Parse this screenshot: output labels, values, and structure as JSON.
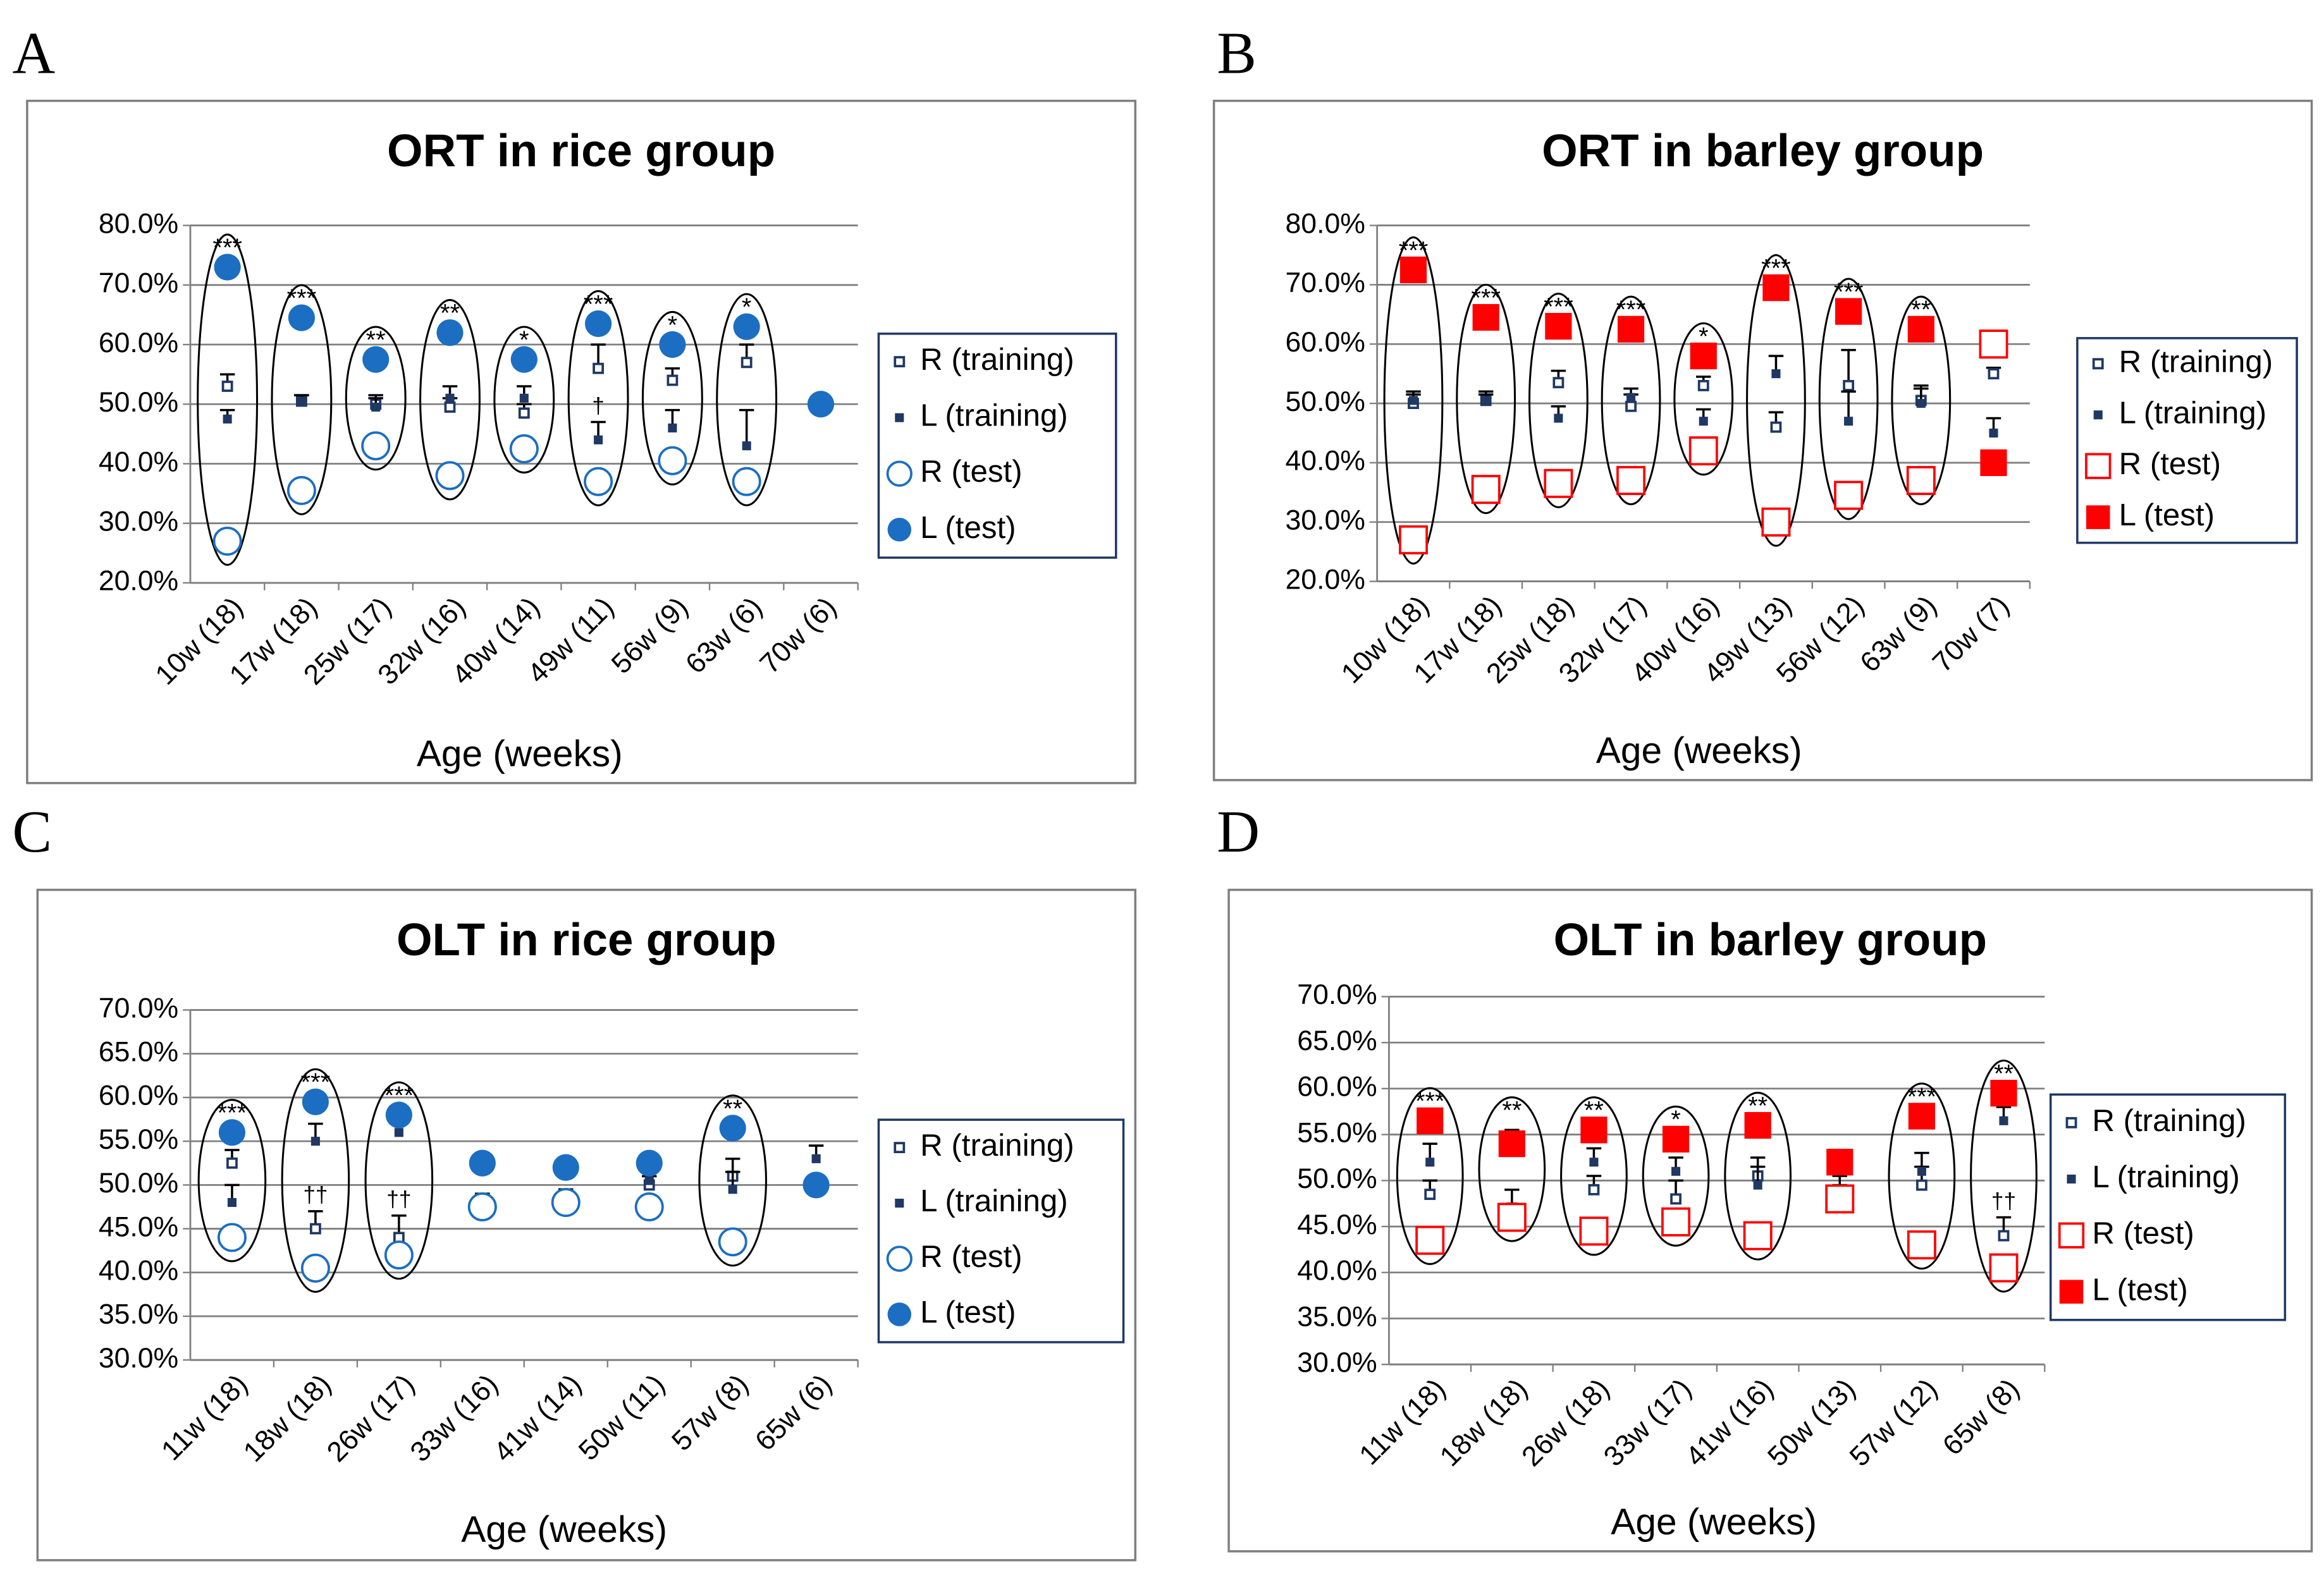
{
  "chart_data": [
    {
      "type": "dot",
      "panel": "A",
      "title": "ORT in rice group",
      "x_label": "Age (weeks)",
      "test_marker": "circle",
      "grid": true,
      "categories": [
        "10w (18)",
        "17w (18)",
        "25w (17)",
        "32w (16)",
        "40w (14)",
        "49w (11)",
        "56w (9)",
        "63w (6)",
        "70w (6)"
      ],
      "ylim": [
        20,
        80
      ],
      "yticks": [
        {
          "value": 20,
          "label": "20.0%"
        },
        {
          "value": 30,
          "label": "30.0%"
        },
        {
          "value": 40,
          "label": "40.0%"
        },
        {
          "value": 50,
          "label": "50.0%"
        },
        {
          "value": 60,
          "label": "60.0%"
        },
        {
          "value": 70,
          "label": "70.0%"
        },
        {
          "value": 80,
          "label": "80.0%"
        }
      ],
      "series": [
        {
          "name": "R (training)",
          "color": "#1f3864",
          "values": [
            53,
            50.5,
            50,
            49.5,
            48.5,
            56,
            54,
            57,
            null
          ],
          "errors": [
            2,
            1,
            1.5,
            1.5,
            1.5,
            4,
            2,
            3,
            null
          ]
        },
        {
          "name": "L (training)",
          "color": "#1f3864",
          "values": [
            47.5,
            50.5,
            49.5,
            51,
            51,
            44,
            46,
            43,
            null
          ],
          "errors": [
            1.5,
            1,
            1.5,
            2,
            2,
            3,
            3,
            6,
            null
          ]
        },
        {
          "name": "R (test)",
          "color": "#1b6ec2",
          "values": [
            27,
            35.5,
            43,
            38,
            42.5,
            37,
            40.5,
            37,
            null
          ]
        },
        {
          "name": "L  (test)",
          "color": "#1b6ec2",
          "values": [
            73,
            64.5,
            57.5,
            62,
            57.5,
            63.5,
            60,
            63,
            50
          ]
        }
      ],
      "significance": [
        "***",
        "***",
        "**",
        "**",
        "*",
        "***",
        "*",
        "*",
        null
      ],
      "daggers": [
        null,
        null,
        null,
        null,
        null,
        "†",
        null,
        null,
        null
      ]
    },
    {
      "type": "dot",
      "panel": "B",
      "title": "ORT in barley group",
      "x_label": "Age (weeks)",
      "test_marker": "square",
      "grid": true,
      "categories": [
        "10w (18)",
        "17w (18)",
        "25w (18)",
        "32w (17)",
        "40w (16)",
        "49w (13)",
        "56w (12)",
        "63w (9)",
        "70w (7)"
      ],
      "ylim": [
        20,
        80
      ],
      "yticks": [
        {
          "value": 20,
          "label": "20.0%"
        },
        {
          "value": 30,
          "label": "30.0%"
        },
        {
          "value": 40,
          "label": "40.0%"
        },
        {
          "value": 50,
          "label": "50.0%"
        },
        {
          "value": 60,
          "label": "60.0%"
        },
        {
          "value": 70,
          "label": "70.0%"
        },
        {
          "value": 80,
          "label": "80.0%"
        }
      ],
      "series": [
        {
          "name": "R (training)",
          "color": "#1f3864",
          "values": [
            50,
            50.5,
            53.5,
            49.5,
            53,
            46,
            53,
            50.5,
            55
          ],
          "errors": [
            1.5,
            1.5,
            2,
            2,
            1.5,
            2.5,
            6,
            2,
            1
          ]
        },
        {
          "name": "L (training)",
          "color": "#1f3864",
          "values": [
            50.5,
            50.5,
            47.5,
            51,
            47,
            55,
            47,
            50,
            45
          ],
          "errors": [
            1.5,
            1,
            2,
            1.5,
            2,
            3,
            5,
            3,
            2.5
          ]
        },
        {
          "name": "R (test)",
          "color": "#ff0000",
          "values": [
            27,
            35.5,
            36.5,
            37,
            42,
            30,
            34.5,
            37,
            60
          ]
        },
        {
          "name": "L  (test)",
          "color": "#ff0000",
          "values": [
            72.5,
            64.5,
            63,
            62.5,
            58,
            69.5,
            65.5,
            62.5,
            40
          ]
        }
      ],
      "significance": [
        "***",
        "***",
        "***",
        "***",
        "*",
        "***",
        "***",
        "**",
        null
      ],
      "daggers": [
        null,
        null,
        null,
        null,
        null,
        null,
        null,
        null,
        null
      ]
    },
    {
      "type": "dot",
      "panel": "C",
      "title": "OLT in rice group",
      "x_label": "Age (weeks)",
      "test_marker": "circle",
      "grid": true,
      "categories": [
        "11w (18)",
        "18w (18)",
        "26w (17)",
        "33w (16)",
        "41w (14)",
        "50w (11)",
        "57w (8)",
        "65w (6)"
      ],
      "ylim": [
        30,
        70
      ],
      "yticks": [
        {
          "value": 30,
          "label": "30.0%"
        },
        {
          "value": 35,
          "label": "35.0%"
        },
        {
          "value": 40,
          "label": "40.0%"
        },
        {
          "value": 45,
          "label": "45.0%"
        },
        {
          "value": 50,
          "label": "50.0%"
        },
        {
          "value": 55,
          "label": "55.0%"
        },
        {
          "value": 60,
          "label": "60.0%"
        },
        {
          "value": 65,
          "label": "65.0%"
        },
        {
          "value": 70,
          "label": "70.0%"
        }
      ],
      "series": [
        {
          "name": "R (training)",
          "color": "#1f3864",
          "values": [
            52.5,
            45,
            44,
            47.5,
            47.5,
            50,
            51,
            null
          ],
          "errors": [
            1.5,
            2,
            2.5,
            1,
            1,
            1,
            2,
            null
          ]
        },
        {
          "name": "L (training)",
          "color": "#1f3864",
          "values": [
            48,
            55,
            56,
            48,
            48.5,
            50.5,
            49.5,
            53
          ],
          "errors": [
            2,
            2,
            1,
            1,
            1,
            1,
            2,
            1.5
          ]
        },
        {
          "name": "R (test)",
          "color": "#1b6ec2",
          "values": [
            44,
            40.5,
            42,
            47.5,
            48,
            47.5,
            43.5,
            null
          ]
        },
        {
          "name": "L  (test)",
          "color": "#1b6ec2",
          "values": [
            56,
            59.5,
            58,
            52.5,
            52,
            52.5,
            56.5,
            50
          ]
        }
      ],
      "significance": [
        "***",
        "***",
        "***",
        null,
        null,
        null,
        "**",
        null
      ],
      "daggers": [
        null,
        "††",
        "††",
        null,
        null,
        null,
        null,
        null
      ]
    },
    {
      "type": "dot",
      "panel": "D",
      "title": "OLT in barley group",
      "x_label": "Age (weeks)",
      "test_marker": "square",
      "grid": true,
      "categories": [
        "11w (18)",
        "18w (18)",
        "26w (18)",
        "33w (17)",
        "41w (16)",
        "50w (13)",
        "57w (12)",
        "65w (8)"
      ],
      "ylim": [
        30,
        70
      ],
      "yticks": [
        {
          "value": 30,
          "label": "30.0%"
        },
        {
          "value": 35,
          "label": "35.0%"
        },
        {
          "value": 40,
          "label": "40.0%"
        },
        {
          "value": 45,
          "label": "45.0%"
        },
        {
          "value": 50,
          "label": "50.0%"
        },
        {
          "value": 55,
          "label": "55.0%"
        },
        {
          "value": 60,
          "label": "60.0%"
        },
        {
          "value": 65,
          "label": "65.0%"
        },
        {
          "value": 70,
          "label": "70.0%"
        }
      ],
      "series": [
        {
          "name": "R (training)",
          "color": "#1f3864",
          "values": [
            48.5,
            47,
            49,
            48,
            50.5,
            49,
            49.5,
            44
          ],
          "errors": [
            1.5,
            2,
            1.5,
            2,
            2,
            1.5,
            2,
            2
          ]
        },
        {
          "name": "L (training)",
          "color": "#1f3864",
          "values": [
            52,
            53.5,
            52,
            51,
            49.5,
            48.5,
            51,
            56.5
          ],
          "errors": [
            2,
            2,
            1.5,
            1.5,
            2,
            1,
            2,
            1.5
          ]
        },
        {
          "name": "R (test)",
          "color": "#ff0000",
          "values": [
            43.5,
            46,
            44.5,
            45.5,
            44,
            48,
            43,
            40.5
          ]
        },
        {
          "name": "L  (test)",
          "color": "#ff0000",
          "values": [
            56.5,
            54,
            55.5,
            54.5,
            56,
            52,
            57,
            59.5
          ]
        }
      ],
      "significance": [
        "***",
        "**",
        "**",
        "*",
        "**",
        null,
        "***",
        "**"
      ],
      "daggers": [
        null,
        null,
        null,
        null,
        null,
        null,
        null,
        "††"
      ]
    }
  ]
}
